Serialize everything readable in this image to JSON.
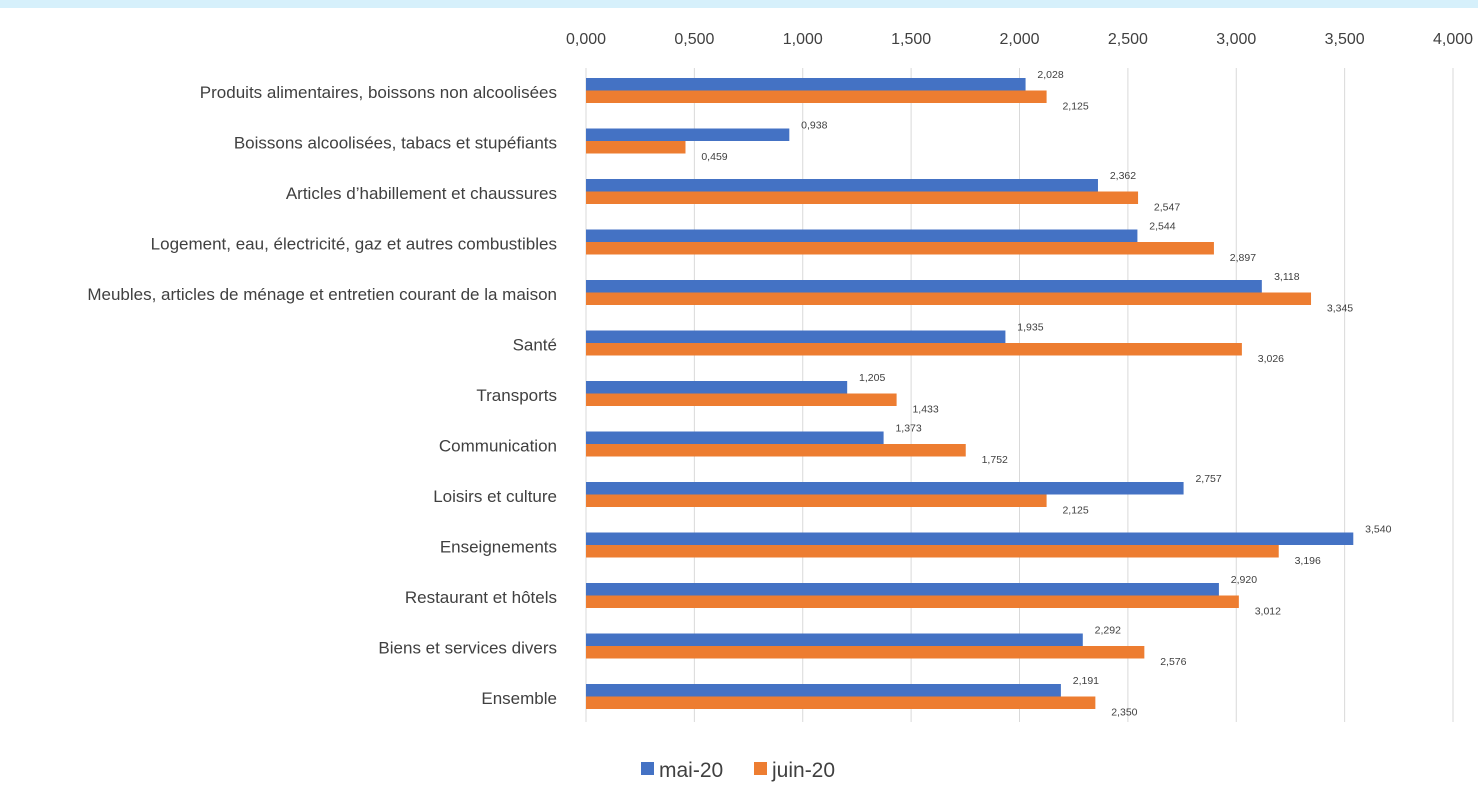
{
  "chart_data": {
    "type": "bar",
    "orientation": "horizontal",
    "categories": [
      "Produits alimentaires, boissons non alcoolisées",
      "Boissons alcoolisées, tabacs et stupéfiants",
      "Articles d’habillement et chaussures",
      "Logement, eau, électricité, gaz et autres combustibles",
      "Meubles, articles de ménage et entretien courant de la maison",
      "Santé",
      "Transports",
      "Communication",
      "Loisirs et culture",
      "Enseignements",
      "Restaurant et hôtels",
      "Biens et services divers",
      "Ensemble"
    ],
    "series": [
      {
        "name": "mai-20",
        "color": "#4472c4",
        "values": [
          2.028,
          0.938,
          2.362,
          2.544,
          3.118,
          1.935,
          1.205,
          1.373,
          2.757,
          3.54,
          2.92,
          2.292,
          2.191
        ],
        "labels": [
          "2,028",
          "0,938",
          "2,362",
          "2,544",
          "3,118",
          "1,935",
          "1,205",
          "1,373",
          "2,757",
          "3,540",
          "2,920",
          "2,292",
          "2,191"
        ]
      },
      {
        "name": "juin-20",
        "color": "#ed7d31",
        "values": [
          2.125,
          0.459,
          2.547,
          2.897,
          3.345,
          3.026,
          1.433,
          1.752,
          2.125,
          3.196,
          3.012,
          2.576,
          2.35
        ],
        "labels": [
          "2,125",
          "0,459",
          "2,547",
          "2,897",
          "3,345",
          "3,026",
          "1,433",
          "1,752",
          "2,125",
          "3,196",
          "3,012",
          "2,576",
          "2,350"
        ]
      }
    ],
    "xlim": [
      0,
      4
    ],
    "ticks": [
      0,
      0.5,
      1,
      1.5,
      2,
      2.5,
      3,
      3.5,
      4
    ],
    "tick_labels": [
      "0,000",
      "0,500",
      "1,000",
      "1,500",
      "2,000",
      "2,500",
      "3,000",
      "3,500",
      "4,000"
    ],
    "axis_position": "top",
    "grid": true,
    "grid_color": "#d9d9d9",
    "legend_position": "bottom",
    "title": "",
    "xlabel": "",
    "ylabel": ""
  }
}
